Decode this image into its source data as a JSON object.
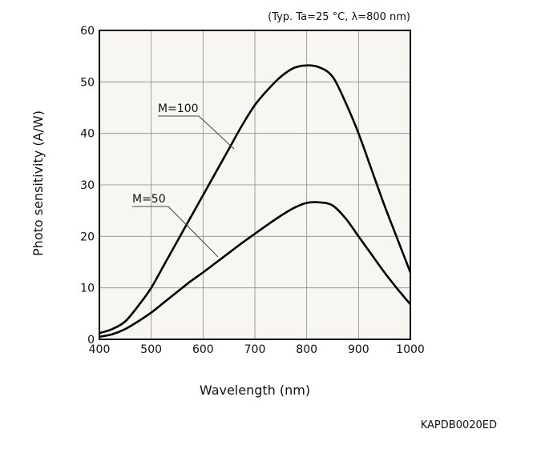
{
  "chart_data": {
    "type": "line",
    "title": "",
    "conditions": "(Typ. Ta=25 °C, λ=800 nm)",
    "xlabel": "Wavelength (nm)",
    "ylabel": "Photo sensitivity (A/W)",
    "xlim": [
      400,
      1000
    ],
    "ylim": [
      0,
      60
    ],
    "xticks": [
      400,
      500,
      600,
      700,
      800,
      900,
      1000
    ],
    "yticks": [
      0,
      10,
      20,
      30,
      40,
      50,
      60
    ],
    "grid": true,
    "plot_background": "#f7f6f0",
    "line_color": "#000000",
    "series": [
      {
        "name": "M=100",
        "x": [
          400,
          425,
          450,
          475,
          500,
          525,
          550,
          575,
          600,
          625,
          650,
          675,
          700,
          725,
          750,
          775,
          800,
          825,
          850,
          875,
          900,
          925,
          950,
          975,
          1000
        ],
        "y": [
          1.2,
          2.0,
          3.5,
          6.5,
          10.0,
          14.5,
          19.0,
          23.5,
          28.0,
          32.5,
          37.0,
          41.5,
          45.5,
          48.5,
          51.0,
          52.7,
          53.2,
          52.8,
          51.0,
          46.0,
          40.0,
          33.0,
          26.0,
          19.5,
          13.0
        ]
      },
      {
        "name": "M=50",
        "x": [
          400,
          425,
          450,
          475,
          500,
          525,
          550,
          575,
          600,
          625,
          650,
          675,
          700,
          725,
          750,
          775,
          800,
          825,
          850,
          875,
          900,
          925,
          950,
          975,
          1000
        ],
        "y": [
          0.5,
          1.0,
          2.0,
          3.5,
          5.2,
          7.2,
          9.2,
          11.2,
          13.0,
          14.9,
          16.8,
          18.7,
          20.5,
          22.3,
          24.0,
          25.5,
          26.5,
          26.6,
          26.0,
          23.5,
          20.0,
          16.5,
          13.0,
          9.8,
          6.8
        ]
      }
    ]
  },
  "figure_code": "KAPDB0020ED"
}
